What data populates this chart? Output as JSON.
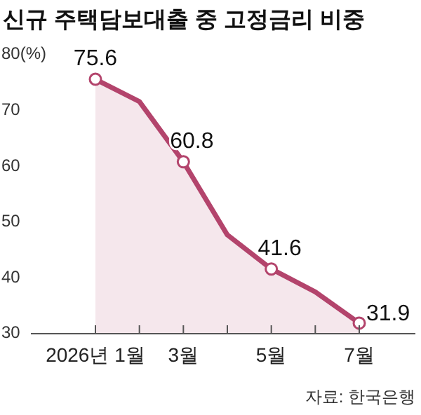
{
  "chart_data": {
    "type": "area",
    "title": "신규 주택담보대출 중 고정금리 비중",
    "categories": [
      "2026년 1월",
      null,
      "3월",
      null,
      "5월",
      null,
      "7월"
    ],
    "series": [
      {
        "color": "#b3446c",
        "values": [
          75.6,
          71.6,
          60.8,
          47.7,
          41.6,
          37.5,
          31.9
        ],
        "value_labels": [
          "75.6",
          null,
          "60.8",
          null,
          "41.6",
          null,
          "31.9"
        ]
      }
    ],
    "marker": "circle",
    "ylim": [
      30,
      80
    ],
    "yticks": [
      {
        "value": 80,
        "label": "80(%)"
      },
      70,
      60,
      50,
      40,
      30
    ],
    "annotations": [
      "자료: 한국은행"
    ]
  }
}
